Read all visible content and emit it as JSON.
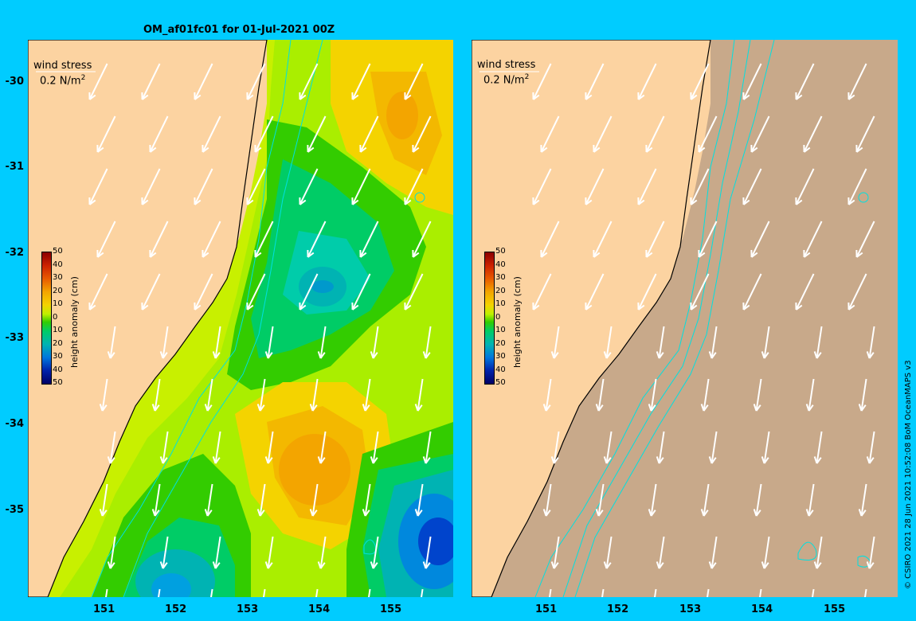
{
  "title": "OM_af01fc01 for 01-Jul-2021 00Z",
  "wind_stress_label": "wind stress",
  "wind_stress_scale": "0.2 N/m",
  "wind_stress_exp": "2",
  "colorbar": {
    "title": "height anomaly (cm)",
    "ticks": [
      "50",
      "40",
      "30",
      "20",
      "10",
      "0",
      "10",
      "20",
      "30",
      "40",
      "50"
    ]
  },
  "y_ticks": [
    "-30",
    "-31",
    "-32",
    "-33",
    "-34",
    "-35"
  ],
  "x_ticks": [
    "151",
    "152",
    "153",
    "154",
    "155"
  ],
  "credit": "© CSIRO 2021   28 Jun 2021 10:52:08 BoM OceanMAPS v3",
  "colors": {
    "background": "#00ccff",
    "land": "#fcd3a1",
    "ocean_right": "#c8a98a",
    "contour": "#00e0e0",
    "arrow": "#ffffff"
  }
}
